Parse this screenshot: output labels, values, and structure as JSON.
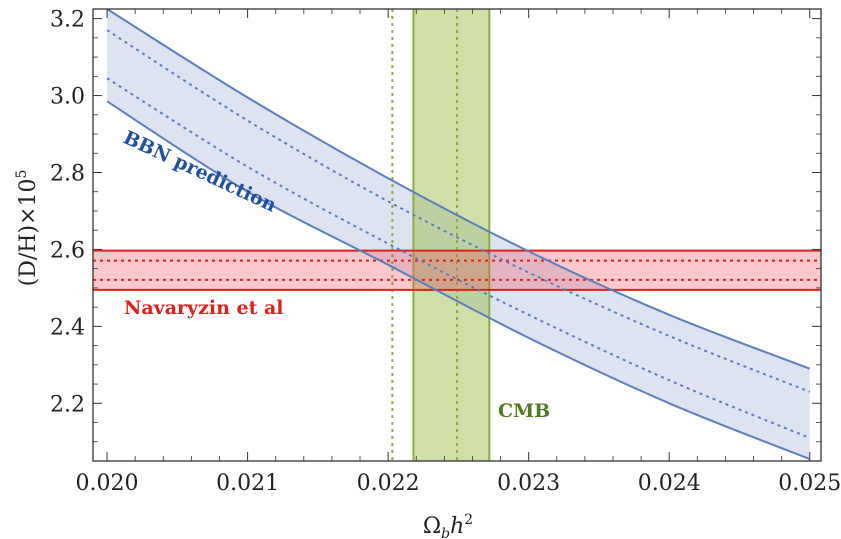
{
  "chart_data": {
    "type": "line",
    "xlabel": {
      "main": "Ω",
      "sub": "b",
      "h": "h",
      "sup": "2"
    },
    "ylabel": {
      "main": "(D/H)×10",
      "sup": "5"
    },
    "xlim": [
      0.0199,
      0.02508
    ],
    "ylim": [
      2.05,
      3.225
    ],
    "xticks": [
      "0.020",
      "0.021",
      "0.022",
      "0.023",
      "0.024",
      "0.025"
    ],
    "yticks": [
      "2.2",
      "2.4",
      "2.6",
      "2.8",
      "3.0",
      "3.2"
    ],
    "grid": false,
    "bands": [
      {
        "label": "BBN prediction",
        "orientation": "curve",
        "color": "#5b7fbf",
        "fill": "#dde3f1",
        "x": [
          0.02,
          0.021,
          0.022,
          0.023,
          0.024,
          0.025
        ],
        "upper": [
          3.225,
          2.995,
          2.785,
          2.595,
          2.43,
          2.29
        ],
        "lower": [
          2.985,
          2.75,
          2.56,
          2.37,
          2.2,
          2.055
        ],
        "center_upper": [
          3.17,
          2.935,
          2.725,
          2.54,
          2.375,
          2.23
        ],
        "center_lower": [
          3.045,
          2.815,
          2.615,
          2.43,
          2.26,
          2.11
        ]
      },
      {
        "label": "Navaryzin et al",
        "orientation": "horizontal",
        "color": "#e0201b",
        "fill": "rgba(238,80,95,0.32)",
        "lower": 2.495,
        "upper": 2.597,
        "center_lower": 2.521,
        "center_upper": 2.571
      },
      {
        "label": "CMB",
        "orientation": "vertical",
        "color": "#8cad3f",
        "fill": "rgba(150,185,60,0.45)",
        "lower": 0.02218,
        "upper": 0.02272,
        "center_lower": 0.02203,
        "center_upper": 0.02249
      }
    ],
    "annotations": [
      {
        "text": "BBN prediction",
        "color": "#1f4fa0"
      },
      {
        "text": "Navaryzin et al",
        "color": "#e0201b"
      },
      {
        "text": "CMB",
        "color": "#4e7a22"
      }
    ]
  }
}
